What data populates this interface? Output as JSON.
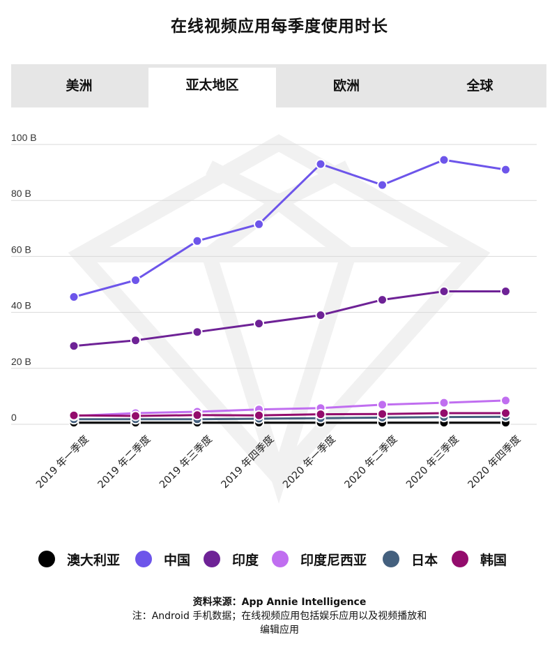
{
  "title": "在线视频应用每季度使用时长",
  "tabs": [
    {
      "label": "美洲",
      "active": false
    },
    {
      "label": "亚太地区",
      "active": true
    },
    {
      "label": "欧洲",
      "active": false
    },
    {
      "label": "全球",
      "active": false
    }
  ],
  "chart_data": {
    "type": "line",
    "categories": [
      "2019 年一季度",
      "2019 年二季度",
      "2019 年三季度",
      "2019 年四季度",
      "2020 年一季度",
      "2020 年二季度",
      "2020 年三季度",
      "2020 年四季度"
    ],
    "y_ticks": [
      "0",
      "20 B",
      "40 B",
      "60 B",
      "80 B",
      "100 B"
    ],
    "ylim": [
      0,
      100
    ],
    "grid": true,
    "series": [
      {
        "name": "澳大利亚",
        "color": "#000000",
        "values": [
          0.6,
          0.6,
          0.6,
          0.6,
          0.6,
          0.6,
          0.6,
          0.6
        ]
      },
      {
        "name": "中国",
        "color": "#6d55ea",
        "values": [
          45.5,
          51.5,
          65.5,
          71.5,
          93,
          85.5,
          94.5,
          91
        ]
      },
      {
        "name": "印度",
        "color": "#6e2296",
        "values": [
          28,
          30,
          33,
          36,
          39,
          44.5,
          47.5,
          47.5
        ]
      },
      {
        "name": "印度尼西亚",
        "color": "#c06ef0",
        "values": [
          3,
          4,
          4.5,
          5.3,
          5.8,
          7,
          7.7,
          8.5
        ]
      },
      {
        "name": "日本",
        "color": "#44607e",
        "values": [
          1.8,
          1.8,
          1.8,
          2,
          2.2,
          2.4,
          2.6,
          2.7
        ]
      },
      {
        "name": "韩国",
        "color": "#930c6c",
        "values": [
          3.2,
          3,
          3.3,
          3.2,
          3.6,
          3.7,
          4,
          4
        ]
      }
    ],
    "legend_position": "bottom"
  },
  "source": "资料来源：App Annie Intelligence",
  "note_line1": "注：Android 手机数据；在线视频应用包括娱乐应用以及视频播放和",
  "note_line2": "编辑应用"
}
